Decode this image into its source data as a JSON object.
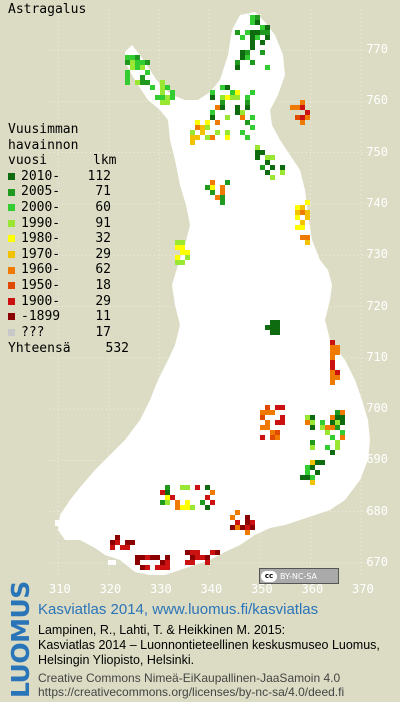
{
  "title": "Astragalus",
  "legend": {
    "header_line1": "Vuusimman",
    "header_line2": "havainnon",
    "header_line3_left": "vuosi",
    "header_line3_right": "lkm",
    "rows": [
      {
        "label": "2010-",
        "count": "112",
        "color": "#0f6b0f"
      },
      {
        "label": "2005-",
        "count": "71",
        "color": "#1f9a1f"
      },
      {
        "label": "2000-",
        "count": "60",
        "color": "#33cc33"
      },
      {
        "label": "1990-",
        "count": "91",
        "color": "#99e633"
      },
      {
        "label": "1980-",
        "count": "32",
        "color": "#ffff00"
      },
      {
        "label": "1970-",
        "count": "29",
        "color": "#f2c200"
      },
      {
        "label": "1960-",
        "count": "62",
        "color": "#f07a00"
      },
      {
        "label": "1950-",
        "count": "18",
        "color": "#e04a00"
      },
      {
        "label": "1900-",
        "count": "29",
        "color": "#cc1111"
      },
      {
        "label": "-1899",
        "count": "11",
        "color": "#8b0000"
      },
      {
        "label": "???",
        "count": "17",
        "color": "#c8c8c8"
      }
    ],
    "total_label": "Yhteensä",
    "total_count": "532"
  },
  "y_axis": [
    "770",
    "760",
    "750",
    "740",
    "730",
    "720",
    "710",
    "700",
    "690",
    "680",
    "670"
  ],
  "x_axis": [
    "310",
    "320",
    "330",
    "340",
    "350",
    "360",
    "370"
  ],
  "license_badge": "BY-NC-SA",
  "footer": {
    "brand": "LUOMUS",
    "line1": "Kasviatlas 2014, www.luomus.fi/kasviatlas",
    "line2": "Lampinen, R., Lahti, T. & Heikkinen M. 2015:",
    "line3": "Kasviatlas 2014 – Luonnontieteellinen keskusmuseo Luomus,",
    "line4": "Helsingin Yliopisto, Helsinki.",
    "line5": "Creative Commons Nimeä-EiKaupallinen-JaaSamoin 4.0",
    "line6": "https://creativecommons.org/licenses/by-nc-sa/4.0/deed.fi"
  }
}
